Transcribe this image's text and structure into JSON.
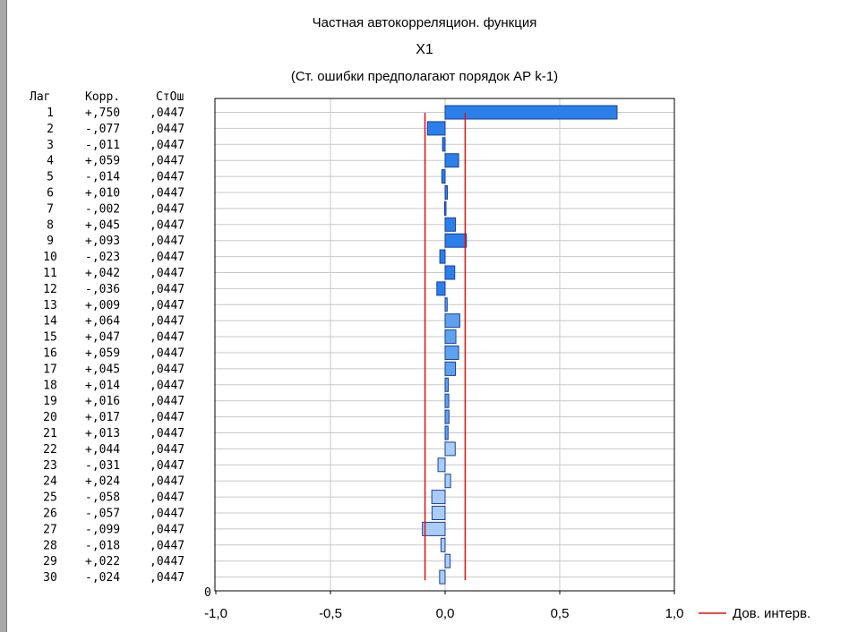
{
  "chart_data": {
    "type": "bar",
    "orientation": "horizontal",
    "title": "Частная автокорреляцион. функция",
    "subtitle": "X1",
    "note": "(Ст. ошибки предполагают порядок АР k-1)",
    "column_headers": {
      "lag": "Лаг",
      "corr": "Корр.",
      "se": "СтОш"
    },
    "lags": [
      "1",
      "2",
      "3",
      "4",
      "5",
      "6",
      "7",
      "8",
      "9",
      "10",
      "11",
      "12",
      "13",
      "14",
      "15",
      "16",
      "17",
      "18",
      "19",
      "20",
      "21",
      "22",
      "23",
      "24",
      "25",
      "26",
      "27",
      "28",
      "29",
      "30"
    ],
    "corr_labels": [
      "+,750",
      "-,077",
      "-,011",
      "+,059",
      "-,014",
      "+,010",
      "-,002",
      "+,045",
      "+,093",
      "-,023",
      "+,042",
      "-,036",
      "+,009",
      "+,064",
      "+,047",
      "+,059",
      "+,045",
      "+,014",
      "+,016",
      "+,017",
      "+,013",
      "+,044",
      "-,031",
      "+,024",
      "-,058",
      "-,057",
      "-,099",
      "-,018",
      "+,022",
      "-,024"
    ],
    "se_labels": [
      ",0447",
      ",0447",
      ",0447",
      ",0447",
      ",0447",
      ",0447",
      ",0447",
      ",0447",
      ",0447",
      ",0447",
      ",0447",
      ",0447",
      ",0447",
      ",0447",
      ",0447",
      ",0447",
      ",0447",
      ",0447",
      ",0447",
      ",0447",
      ",0447",
      ",0447",
      ",0447",
      ",0447",
      ",0447",
      ",0447",
      ",0447",
      ",0447",
      ",0447",
      ",0447"
    ],
    "values": [
      0.75,
      -0.077,
      -0.011,
      0.059,
      -0.014,
      0.01,
      -0.002,
      0.045,
      0.093,
      -0.023,
      0.042,
      -0.036,
      0.009,
      0.064,
      0.047,
      0.059,
      0.045,
      0.014,
      0.016,
      0.017,
      0.013,
      0.044,
      -0.031,
      0.024,
      -0.058,
      -0.057,
      -0.099,
      -0.018,
      0.022,
      -0.024
    ],
    "confidence_limit": 0.0876,
    "xlim": [
      -1.0,
      1.0
    ],
    "x_ticks": [
      -1.0,
      -0.5,
      0.0,
      0.5,
      1.0
    ],
    "x_tick_labels": [
      "-1,0",
      "-0,5",
      "0,0",
      "0,5",
      "1,0"
    ],
    "y_zero_label": "0",
    "legend": {
      "label": "Дов. интерв.",
      "position": "bottom-right"
    },
    "grid": true,
    "colors": {
      "bar_strong": "#2b7fe8",
      "bar_medium": "#5ea2ee",
      "bar_light": "#a9cdf5",
      "bar_stroke": "#1a3f9c",
      "conf_line": "#dd1111",
      "grid": "#c8c8c8"
    }
  }
}
